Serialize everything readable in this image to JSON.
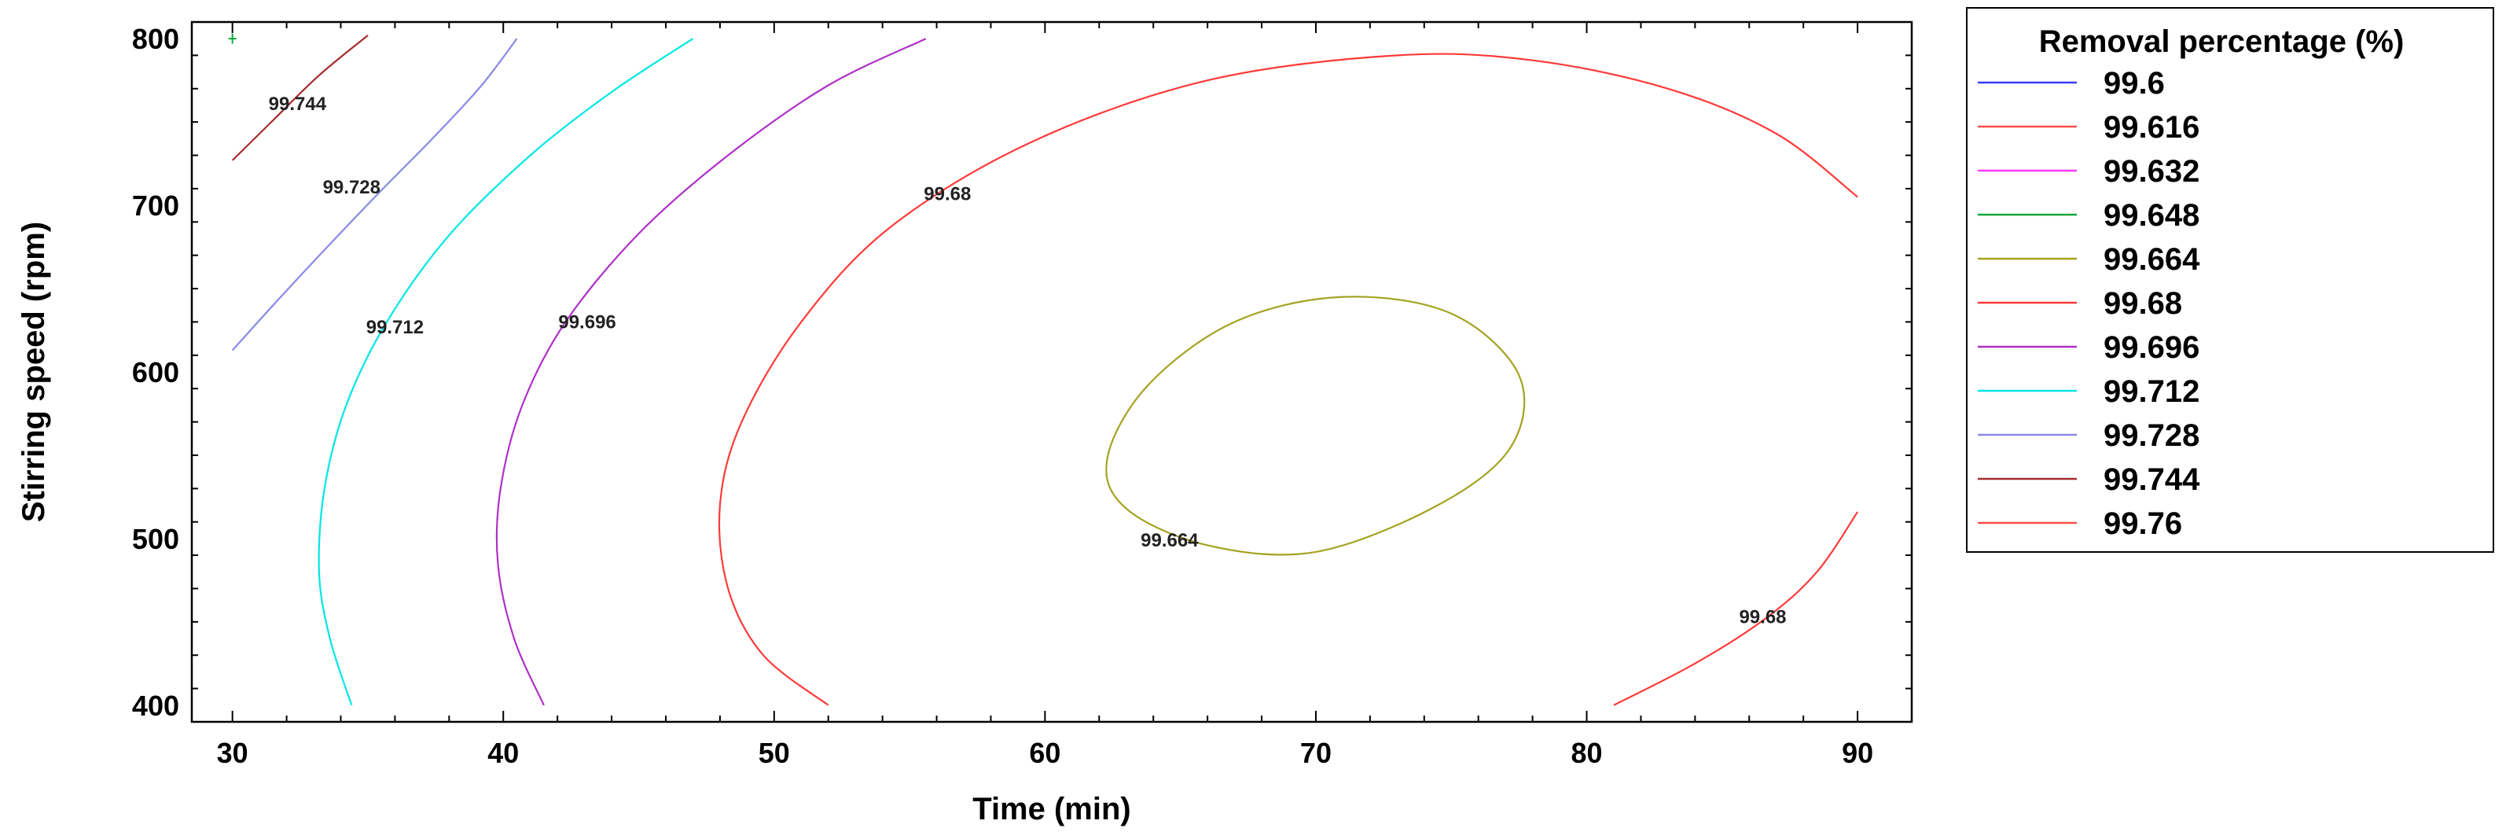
{
  "chart_data": {
    "type": "contour",
    "xlabel": "Time (min)",
    "ylabel": "Stirring speed (rpm)",
    "xlim": [
      28.5,
      92
    ],
    "ylim": [
      390,
      810
    ],
    "xticks": [
      30,
      40,
      50,
      60,
      70,
      80,
      90
    ],
    "yticks": [
      400,
      500,
      600,
      700,
      800
    ],
    "legend": {
      "title": "Removal percentage (%)",
      "placement": "right",
      "entries": [
        {
          "label": "99.6",
          "color": "#3b3bff"
        },
        {
          "label": "99.616",
          "color": "#ff4d4d"
        },
        {
          "label": "99.632",
          "color": "#ff3bff"
        },
        {
          "label": "99.648",
          "color": "#0aa83a"
        },
        {
          "label": "99.664",
          "color": "#a3a321"
        },
        {
          "label": "99.68",
          "color": "#ff3a3a"
        },
        {
          "label": "99.696",
          "color": "#b030c8"
        },
        {
          "label": "99.712",
          "color": "#00e6e6"
        },
        {
          "label": "99.728",
          "color": "#8a8ae6"
        },
        {
          "label": "99.744",
          "color": "#a32d2d"
        },
        {
          "label": "99.76",
          "color": "#ff4d4d"
        }
      ]
    },
    "contours": [
      {
        "level": "99.744",
        "color": "#a32d2d",
        "points": [
          [
            30,
            727
          ],
          [
            31.5,
            751
          ],
          [
            33.2,
            778
          ],
          [
            35,
            802
          ]
        ],
        "label_at": [
          32.4,
          761
        ]
      },
      {
        "level": "99.728",
        "color": "#8a8ae6",
        "points": [
          [
            30,
            613
          ],
          [
            31.5,
            640
          ],
          [
            33.5,
            675
          ],
          [
            35.5,
            709
          ],
          [
            37.5,
            742
          ],
          [
            39.2,
            772
          ],
          [
            40.5,
            800
          ]
        ],
        "label_at": [
          34.4,
          711
        ]
      },
      {
        "level": "99.712",
        "color": "#00e6e6",
        "points": [
          [
            34.4,
            400
          ],
          [
            33.6,
            440
          ],
          [
            33.2,
            480
          ],
          [
            33.4,
            530
          ],
          [
            34.2,
            580
          ],
          [
            35.7,
            630
          ],
          [
            38,
            682
          ],
          [
            41,
            730
          ],
          [
            44,
            768
          ],
          [
            47,
            800
          ]
        ],
        "label_at": [
          36,
          627
        ]
      },
      {
        "level": "99.696",
        "color": "#b030c8",
        "points": [
          [
            41.5,
            400
          ],
          [
            40.4,
            440
          ],
          [
            39.8,
            485
          ],
          [
            39.9,
            530
          ],
          [
            40.7,
            580
          ],
          [
            42.3,
            630
          ],
          [
            45,
            683
          ],
          [
            48.3,
            730
          ],
          [
            52,
            772
          ],
          [
            55.6,
            800
          ]
        ],
        "label_at": [
          43.1,
          630
        ]
      },
      {
        "level": "99.68",
        "color": "#ff3a3a",
        "points": [
          [
            52,
            400
          ],
          [
            49.6,
            430
          ],
          [
            48.3,
            470
          ],
          [
            48,
            520
          ],
          [
            48.8,
            570
          ],
          [
            51,
            630
          ],
          [
            54.3,
            687
          ],
          [
            59.5,
            738
          ],
          [
            66,
            775
          ],
          [
            73,
            790
          ],
          [
            78,
            787
          ],
          [
            83,
            770
          ],
          [
            87,
            743
          ],
          [
            90,
            705
          ]
        ],
        "label_at": [
          56.4,
          707
        ]
      },
      {
        "level": "99.664",
        "color": "#a3a321",
        "closed": true,
        "points": [
          [
            62.3,
            548
          ],
          [
            63.8,
            592
          ],
          [
            67,
            630
          ],
          [
            71,
            645
          ],
          [
            75,
            635
          ],
          [
            77.5,
            598
          ],
          [
            77.2,
            555
          ],
          [
            74.5,
            520
          ],
          [
            70,
            492
          ],
          [
            66,
            496
          ],
          [
            63,
            518
          ]
        ],
        "label_at": [
          64.6,
          499
        ]
      },
      {
        "level": "99.68",
        "color": "#ff3a3a",
        "points": [
          [
            81,
            400
          ],
          [
            84,
            425
          ],
          [
            86.6,
            452
          ],
          [
            88.5,
            480
          ],
          [
            90,
            516
          ]
        ],
        "label_at": [
          86.5,
          453
        ]
      },
      {
        "level": "99.648",
        "color": "#0aa83a",
        "points": [
          [
            30,
            797
          ],
          [
            30,
            803
          ]
        ],
        "marker": true
      }
    ]
  }
}
